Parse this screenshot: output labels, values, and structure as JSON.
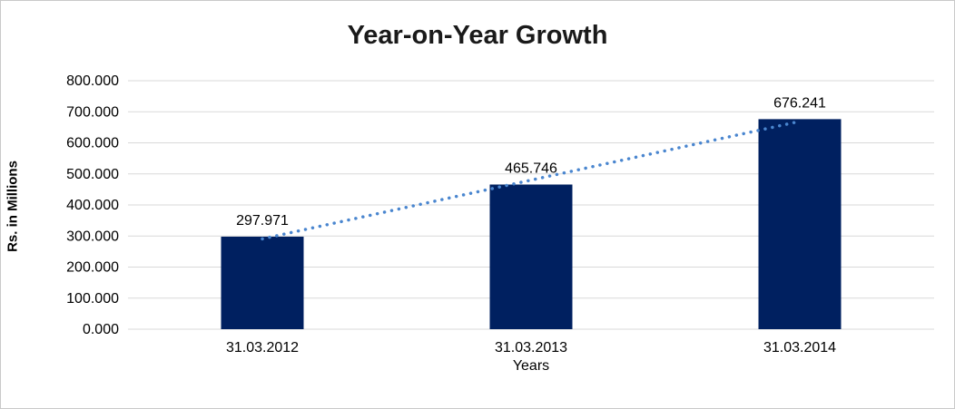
{
  "chart_data": {
    "type": "bar",
    "title": "Year-on-Year Growth",
    "xlabel": "Years",
    "ylabel": "Rs. in Millions",
    "categories": [
      "31.03.2012",
      "31.03.2013",
      "31.03.2014"
    ],
    "values": [
      297.971,
      465.746,
      676.241
    ],
    "value_labels": [
      "297.971",
      "465.746",
      "676.241"
    ],
    "y_tick_labels": [
      "0.000",
      "100.000",
      "200.000",
      "300.000",
      "400.000",
      "500.000",
      "600.000",
      "700.000",
      "800.000"
    ],
    "ylim": [
      0,
      800
    ],
    "y_tick_step": 100,
    "grid": true,
    "legend": "none",
    "trendline": {
      "style": "dotted",
      "fit": "linear",
      "color": "#4a86cf"
    },
    "colors": {
      "bar": "#002060",
      "gridline": "#d9d9d9",
      "axis_text": "#000000",
      "title_text": "#1a1a1a",
      "frame_border": "#c9c9c9",
      "background": "#ffffff"
    }
  }
}
